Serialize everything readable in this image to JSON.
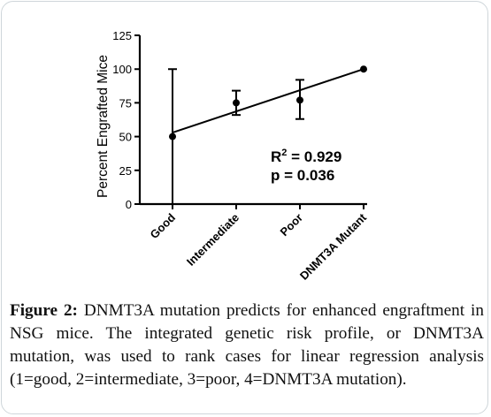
{
  "chart_data": {
    "type": "scatter",
    "categories": [
      "Good",
      "Intermediate",
      "Poor",
      "DNMT3A Mutant"
    ],
    "x": [
      1,
      2,
      3,
      4
    ],
    "points": [
      {
        "category": "Good",
        "x": 1,
        "y": 50,
        "error_low": 0,
        "error_high": 100
      },
      {
        "category": "Intermediate",
        "x": 2,
        "y": 75,
        "error_low": 66,
        "error_high": 84
      },
      {
        "category": "Poor",
        "x": 3,
        "y": 77,
        "error_low": 63,
        "error_high": 92
      },
      {
        "category": "DNMT3A Mutant",
        "x": 4,
        "y": 100,
        "error_low": 100,
        "error_high": 100
      }
    ],
    "regression_line": {
      "x": [
        1,
        4
      ],
      "y": [
        53,
        100
      ]
    },
    "ylabel": "Percent Engrafted Mice",
    "xlabel": "",
    "ylim": [
      0,
      125
    ],
    "yticks": [
      0,
      25,
      50,
      75,
      100,
      125
    ],
    "annotations": {
      "r2_label": "R",
      "r2_superscript": "2",
      "r2_value": " = 0.929",
      "p_text": "p = 0.036"
    },
    "grid": false,
    "colors": {
      "line": "#000000",
      "point": "#000000"
    }
  },
  "caption": {
    "label": "Figure 2:",
    "text": " DNMT3A mutation predicts for enhanced engraftment in NSG mice. The integrated genetic risk profile, or DNMT3A mutation, was used to rank cases for linear regression analysis (1=good, 2=intermediate, 3=poor, 4=DNMT3A mutation)."
  }
}
